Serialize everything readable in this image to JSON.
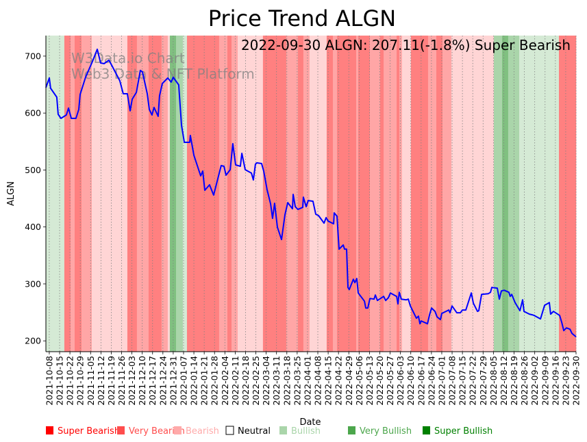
{
  "chart_data": {
    "type": "line",
    "title": "Price Trend ALGN",
    "annotation": "2022-09-30 ALGN: 207.11(-1.8%) Super Bearish",
    "watermark": [
      "W3Data.io Chart",
      "Web3 Data & NFT Platform"
    ],
    "xlabel": "Date",
    "ylabel": "ALGN",
    "x_unit": "days since 2021-10-08",
    "xlim": [
      -2.3,
      357
    ],
    "ylim": [
      181,
      736
    ],
    "grid": "vertical dotted",
    "line_color": "#0000ff",
    "yticks": [
      200,
      300,
      400,
      500,
      600,
      700
    ],
    "xtick_step_days": 7,
    "xtick_labels": [
      "2021-10-08",
      "2021-10-15",
      "2021-10-22",
      "2021-10-29",
      "2021-11-05",
      "2021-11-12",
      "2021-11-19",
      "2021-11-26",
      "2021-12-03",
      "2021-12-10",
      "2021-12-17",
      "2021-12-24",
      "2021-12-31",
      "2022-01-07",
      "2022-01-14",
      "2022-01-21",
      "2022-01-28",
      "2022-02-04",
      "2022-02-11",
      "2022-02-18",
      "2022-02-25",
      "2022-03-04",
      "2022-03-11",
      "2022-03-18",
      "2022-03-25",
      "2022-04-01",
      "2022-04-08",
      "2022-04-15",
      "2022-04-22",
      "2022-04-29",
      "2022-05-06",
      "2022-05-13",
      "2022-05-20",
      "2022-05-27",
      "2022-06-03",
      "2022-06-10",
      "2022-06-17",
      "2022-06-24",
      "2022-07-01",
      "2022-07-08",
      "2022-07-15",
      "2022-07-22",
      "2022-07-29",
      "2022-08-05",
      "2022-08-12",
      "2022-08-19",
      "2022-08-26",
      "2022-09-02",
      "2022-09-09",
      "2022-09-16",
      "2022-09-23",
      "2022-09-30"
    ],
    "series": [
      {
        "name": "ALGN",
        "points": [
          [
            -2.3,
            644.7
          ],
          [
            0,
            661.5
          ],
          [
            0.9,
            643.5
          ],
          [
            5.1,
            627.9
          ],
          [
            6.0,
            597.8
          ],
          [
            7.9,
            590.6
          ],
          [
            11.6,
            596.6
          ],
          [
            13.0,
            608.7
          ],
          [
            14.9,
            590.6
          ],
          [
            18.1,
            590.6
          ],
          [
            20.0,
            606.3
          ],
          [
            20.9,
            632.7
          ],
          [
            24.6,
            662.7
          ],
          [
            29.2,
            690.4
          ],
          [
            32.5,
            712.0
          ],
          [
            34.8,
            688.0
          ],
          [
            37.1,
            686.8
          ],
          [
            40.4,
            692.8
          ],
          [
            42.2,
            684.4
          ],
          [
            47.8,
            656.7
          ],
          [
            50.1,
            633.9
          ],
          [
            52.9,
            633.9
          ],
          [
            54.8,
            603.8
          ],
          [
            56.2,
            624.3
          ],
          [
            59.0,
            636.3
          ],
          [
            61.7,
            674.8
          ],
          [
            63.1,
            672.4
          ],
          [
            66.4,
            633.9
          ],
          [
            67.8,
            606.3
          ],
          [
            69.6,
            596.6
          ],
          [
            71.0,
            609.9
          ],
          [
            73.8,
            594.2
          ],
          [
            74.7,
            630.3
          ],
          [
            76.6,
            651.9
          ],
          [
            80.3,
            661.5
          ],
          [
            82.6,
            654.3
          ],
          [
            84.0,
            662.7
          ],
          [
            87.7,
            649.5
          ],
          [
            89.6,
            578.6
          ],
          [
            91.5,
            548.6
          ],
          [
            95.2,
            548.6
          ],
          [
            95.6,
            560.6
          ],
          [
            98.0,
            525.7
          ],
          [
            102.6,
            489.7
          ],
          [
            104.0,
            498.1
          ],
          [
            105.4,
            464.4
          ],
          [
            108.6,
            474.0
          ],
          [
            111.4,
            456.0
          ],
          [
            116.5,
            507.7
          ],
          [
            118.4,
            506.5
          ],
          [
            119.8,
            490.9
          ],
          [
            122.6,
            500.5
          ],
          [
            124.4,
            546.2
          ],
          [
            126.3,
            508.9
          ],
          [
            129.5,
            506.5
          ],
          [
            130.5,
            529.3
          ],
          [
            132.8,
            500.5
          ],
          [
            137.0,
            494.5
          ],
          [
            138.3,
            482.5
          ],
          [
            139.7,
            510.1
          ],
          [
            140.7,
            512.5
          ],
          [
            143.9,
            511.3
          ],
          [
            145.3,
            498.1
          ],
          [
            147.6,
            465.6
          ],
          [
            150.0,
            440.4
          ],
          [
            151.3,
            415.1
          ],
          [
            152.7,
            441.6
          ],
          [
            154.6,
            399.5
          ],
          [
            157.4,
            377.9
          ],
          [
            159.7,
            421.2
          ],
          [
            161.6,
            442.8
          ],
          [
            164.8,
            432.0
          ],
          [
            165.3,
            457.2
          ],
          [
            166.7,
            435.6
          ],
          [
            168.5,
            430.8
          ],
          [
            171.8,
            434.4
          ],
          [
            172.2,
            452.4
          ],
          [
            174.1,
            435.6
          ],
          [
            175.5,
            446.4
          ],
          [
            178.7,
            445.2
          ],
          [
            180.6,
            422.4
          ],
          [
            182.5,
            419.9
          ],
          [
            186.2,
            406.7
          ],
          [
            187.6,
            416.3
          ],
          [
            189.0,
            410.3
          ],
          [
            192.7,
            405.5
          ],
          [
            193.1,
            424.8
          ],
          [
            195.0,
            418.8
          ],
          [
            196.4,
            361.1
          ],
          [
            199.2,
            368.3
          ],
          [
            200.1,
            361.1
          ],
          [
            201.5,
            361.1
          ],
          [
            202.4,
            293.8
          ],
          [
            203.3,
            290.1
          ],
          [
            206.1,
            308.2
          ],
          [
            207.1,
            302.2
          ],
          [
            208.4,
            309.4
          ],
          [
            209.4,
            284.1
          ],
          [
            213.6,
            269.7
          ],
          [
            214.5,
            257.7
          ],
          [
            215.9,
            257.7
          ],
          [
            217.3,
            274.5
          ],
          [
            220.1,
            273.3
          ],
          [
            221.0,
            280.5
          ],
          [
            222.4,
            270.9
          ],
          [
            226.6,
            278.1
          ],
          [
            228.0,
            270.9
          ],
          [
            229.8,
            275.7
          ],
          [
            231.2,
            284.1
          ],
          [
            235.4,
            278.1
          ],
          [
            236.3,
            264.9
          ],
          [
            237.2,
            285.3
          ],
          [
            238.6,
            273.3
          ],
          [
            241.9,
            272.1
          ],
          [
            243.3,
            273.3
          ],
          [
            244.7,
            261.3
          ],
          [
            248.8,
            239.7
          ],
          [
            250.2,
            243.3
          ],
          [
            251.2,
            230.0
          ],
          [
            252.1,
            234.9
          ],
          [
            256.3,
            230.0
          ],
          [
            257.7,
            245.7
          ],
          [
            259.1,
            257.7
          ],
          [
            261.4,
            251.7
          ],
          [
            262.8,
            242.1
          ],
          [
            265.1,
            237.3
          ],
          [
            266.0,
            248.1
          ],
          [
            270.7,
            254.1
          ],
          [
            271.6,
            249.3
          ],
          [
            273.0,
            261.3
          ],
          [
            276.2,
            249.3
          ],
          [
            278.6,
            249.3
          ],
          [
            280.0,
            254.1
          ],
          [
            282.3,
            254.1
          ],
          [
            286.0,
            284.1
          ],
          [
            287.4,
            266.1
          ],
          [
            290.2,
            251.7
          ],
          [
            291.1,
            252.9
          ],
          [
            293.0,
            281.7
          ],
          [
            297.6,
            282.9
          ],
          [
            299.0,
            285.3
          ],
          [
            299.9,
            293.8
          ],
          [
            303.6,
            292.6
          ],
          [
            305.0,
            273.3
          ],
          [
            306.4,
            287.7
          ],
          [
            308.3,
            288.9
          ],
          [
            311.5,
            285.3
          ],
          [
            312.4,
            278.1
          ],
          [
            313.4,
            281.7
          ],
          [
            315.7,
            267.3
          ],
          [
            319.0,
            252.9
          ],
          [
            320.8,
            272.1
          ],
          [
            321.7,
            251.7
          ],
          [
            325.4,
            246.9
          ],
          [
            327.3,
            245.7
          ],
          [
            328.7,
            244.5
          ],
          [
            332.9,
            238.5
          ],
          [
            335.7,
            262.5
          ],
          [
            338.9,
            267.3
          ],
          [
            339.8,
            246.9
          ],
          [
            341.7,
            251.7
          ],
          [
            345.9,
            244.5
          ],
          [
            347.3,
            232.5
          ],
          [
            348.7,
            218.0
          ],
          [
            350.5,
            222.8
          ],
          [
            352.9,
            220.4
          ],
          [
            354.2,
            213.2
          ],
          [
            357,
            207.11
          ]
        ]
      }
    ],
    "sentiment_bands": [
      [
        -2.3,
        10.2,
        1
      ],
      [
        10.2,
        14.4,
        -3
      ],
      [
        14.4,
        17.2,
        -2
      ],
      [
        17.2,
        21.8,
        -3
      ],
      [
        21.8,
        28.8,
        -2
      ],
      [
        28.8,
        52.9,
        -1
      ],
      [
        52.9,
        59.4,
        -3
      ],
      [
        59.4,
        67.3,
        -2
      ],
      [
        67.3,
        76.1,
        -3
      ],
      [
        76.1,
        80.3,
        -2
      ],
      [
        80.3,
        81.7,
        -1
      ],
      [
        81.7,
        85.9,
        3
      ],
      [
        85.9,
        90.5,
        2
      ],
      [
        90.5,
        93.3,
        1
      ],
      [
        93.3,
        115.1,
        -3
      ],
      [
        115.1,
        120.7,
        -2
      ],
      [
        120.7,
        123.5,
        -3
      ],
      [
        123.5,
        127.7,
        -2
      ],
      [
        127.7,
        144.8,
        -1
      ],
      [
        144.8,
        160.6,
        -3
      ],
      [
        160.6,
        168.5,
        -2
      ],
      [
        168.5,
        172.2,
        -3
      ],
      [
        172.2,
        176.4,
        -2
      ],
      [
        176.4,
        188,
        -1
      ],
      [
        188,
        192.2,
        -3
      ],
      [
        192.2,
        195,
        -2
      ],
      [
        195,
        208,
        -3
      ],
      [
        208,
        209.4,
        -2
      ],
      [
        209.4,
        217.3,
        -3
      ],
      [
        217.3,
        224.2,
        -2
      ],
      [
        224.2,
        226.6,
        -3
      ],
      [
        226.6,
        235.4,
        -2
      ],
      [
        235.4,
        237.2,
        -3
      ],
      [
        237.2,
        239,
        -2
      ],
      [
        239,
        245.1,
        -1
      ],
      [
        245.1,
        256.7,
        -3
      ],
      [
        256.7,
        262.3,
        -2
      ],
      [
        262.3,
        266.5,
        -3
      ],
      [
        266.5,
        272.5,
        -2
      ],
      [
        272.5,
        301.3,
        -1
      ],
      [
        301.3,
        306.9,
        2
      ],
      [
        306.9,
        311,
        3
      ],
      [
        311,
        318.5,
        2
      ],
      [
        318.5,
        345.4,
        1
      ],
      [
        345.4,
        357,
        -3
      ]
    ],
    "band_colors": {
      "-3": "#ff8080",
      "-2": "#ffa6a6",
      "-1": "#ffd5d5",
      "0": "#ffffff",
      "1": "#d5ead5",
      "2": "#aad5aa",
      "3": "#80c080"
    },
    "legend": [
      {
        "label": "Super Bearish",
        "color": "#ff0000"
      },
      {
        "label": "Very Bearish",
        "color": "#ff4d4d"
      },
      {
        "label": "Bearish",
        "color": "#ffaaaa"
      },
      {
        "label": "Neutral",
        "color": "#ffffff",
        "text_color": "#000000"
      },
      {
        "label": "Bullish",
        "color": "#aad5aa"
      },
      {
        "label": "Very Bullish",
        "color": "#4ca64c"
      },
      {
        "label": "Super Bullish",
        "color": "#008000"
      }
    ]
  }
}
